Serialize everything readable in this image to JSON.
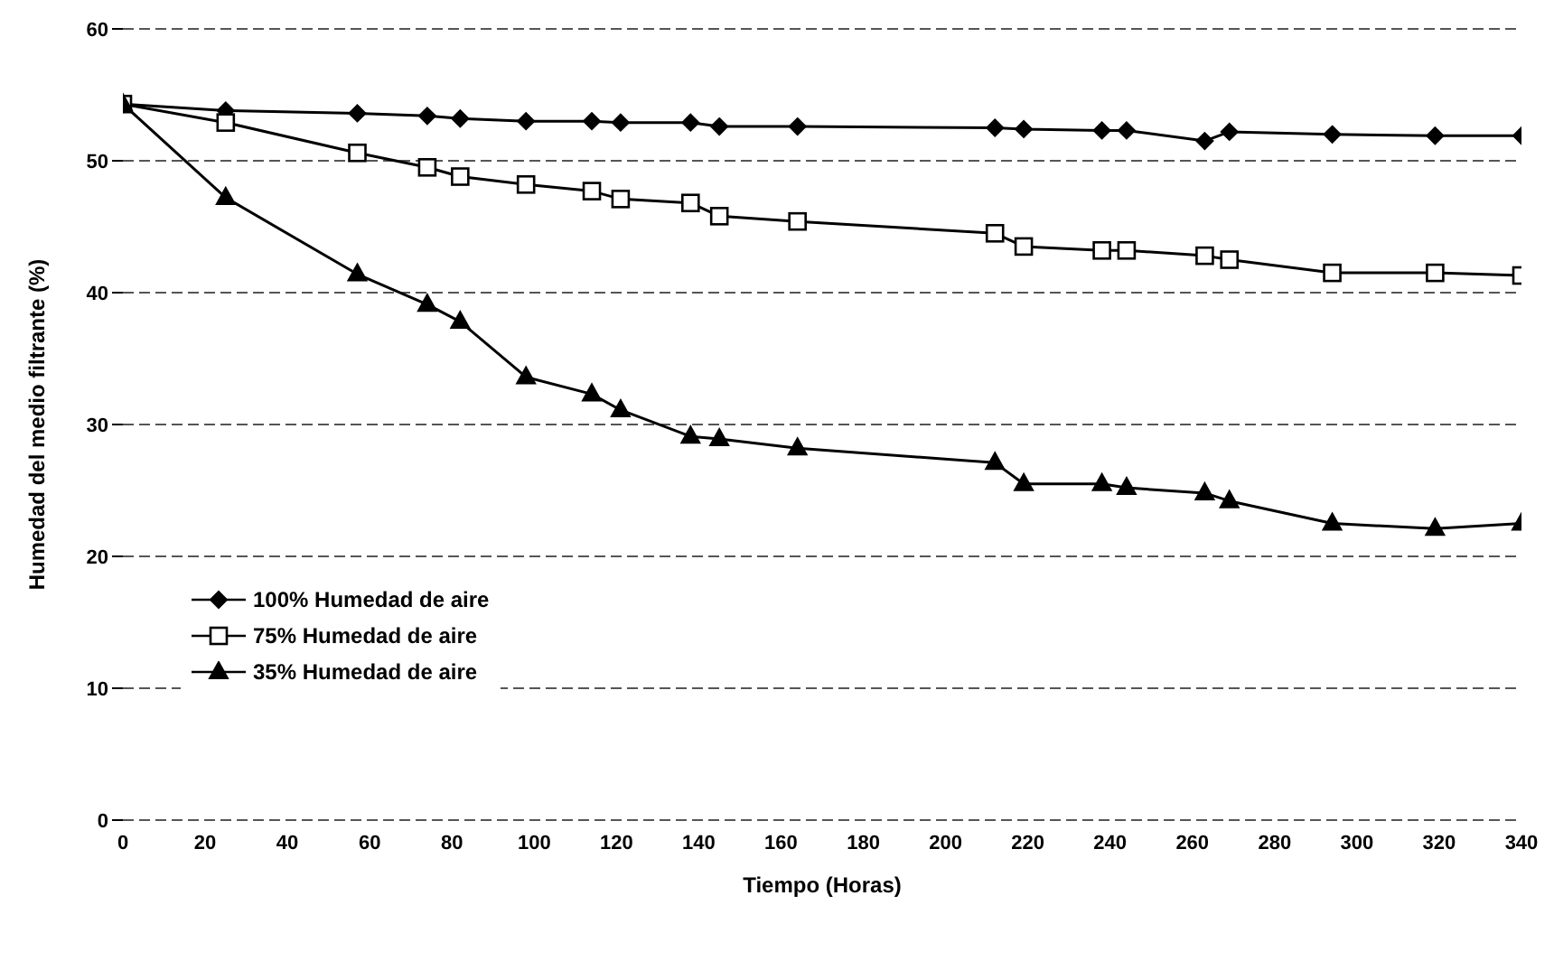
{
  "chart_data": {
    "type": "line",
    "xlabel": "Tiempo (Horas)",
    "ylabel": "Humedad del medio filtrante (%)",
    "x": [
      0,
      25,
      57,
      74,
      82,
      98,
      114,
      121,
      138,
      145,
      164,
      212,
      219,
      238,
      244,
      263,
      269,
      294,
      319,
      340
    ],
    "series": [
      {
        "name": "100% Humedad de aire",
        "color": "#000000",
        "marker": "diamond",
        "values": [
          54.3,
          53.8,
          53.6,
          53.4,
          53.2,
          53.0,
          53.0,
          52.9,
          52.9,
          52.6,
          52.6,
          52.5,
          52.4,
          52.3,
          52.3,
          51.5,
          52.2,
          52.0,
          51.9,
          51.9
        ]
      },
      {
        "name": "75% Humedad de aire",
        "color": "#000000",
        "marker": "square",
        "values": [
          54.3,
          52.9,
          50.6,
          49.5,
          48.8,
          48.2,
          47.7,
          47.1,
          46.8,
          45.8,
          45.4,
          44.5,
          43.5,
          43.2,
          43.2,
          42.8,
          42.5,
          41.5,
          41.5,
          41.3
        ]
      },
      {
        "name": "35% Humedad de aire",
        "color": "#000000",
        "marker": "triangle",
        "values": [
          54.3,
          47.2,
          41.4,
          39.1,
          37.8,
          33.6,
          32.3,
          31.1,
          29.1,
          28.9,
          28.2,
          27.1,
          25.5,
          25.5,
          25.2,
          24.8,
          24.2,
          22.5,
          22.1,
          22.5
        ]
      }
    ],
    "xlim": [
      0,
      340
    ],
    "xticks": [
      0,
      20,
      40,
      60,
      80,
      100,
      120,
      140,
      160,
      180,
      200,
      220,
      240,
      260,
      280,
      300,
      320,
      340
    ],
    "ylim": [
      0,
      60
    ],
    "yticks": [
      0,
      10,
      20,
      30,
      40,
      50,
      60
    ],
    "grid": "y",
    "legend": "left",
    "line_style": "solid"
  }
}
